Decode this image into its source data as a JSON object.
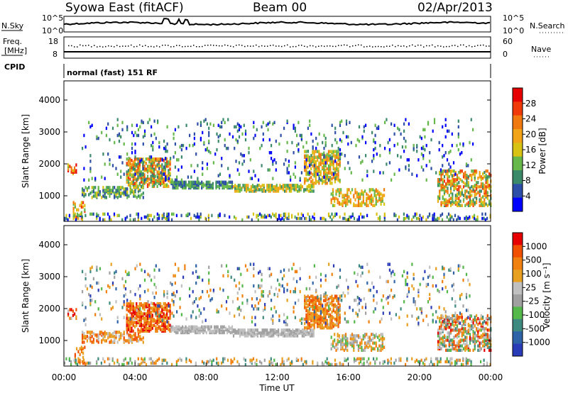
{
  "header": {
    "station": "Syowa East (fitACF)",
    "beam": "Beam 00",
    "date": "02/Apr/2013"
  },
  "status_panels": {
    "nsky_label": "N.Sky",
    "nsearch_label": "N.Search",
    "nsky_ticks": [
      "10^5",
      "10^0"
    ],
    "nsearch_ticks": [
      "10^5",
      "10^0"
    ],
    "freq_label_top": "Freq.",
    "freq_label_unit": "[MHz]",
    "freq_ticks": [
      "18",
      "8"
    ],
    "nave_label": "Nave",
    "nave_ticks": [
      "60",
      "0"
    ],
    "cpid_label": "CPID",
    "cpid_value": "normal (fast) 151 RF"
  },
  "colors": {
    "power_scale": [
      "#0000ff",
      "#2c4ea6",
      "#3a8a6a",
      "#66b84a",
      "#d8c214",
      "#f2a418",
      "#f07a10",
      "#f03a0a",
      "#e60000"
    ],
    "velocity_scale": [
      "#2a3cb8",
      "#2e63a8",
      "#3f8a80",
      "#55b84a",
      "#a0a0a0",
      "#c0c0c0",
      "#e8a020",
      "#f08010",
      "#f05000",
      "#e60000"
    ]
  },
  "chart_data": [
    {
      "type": "heatmap",
      "title": "",
      "xlabel": "Time UT",
      "ylabel": "Slant Range [km]",
      "x_ticks": [
        "00:00",
        "04:00",
        "08:00",
        "12:00",
        "16:00",
        "20:00",
        "00:00"
      ],
      "y_ticks": [
        "1000",
        "2000",
        "3000",
        "4000"
      ],
      "ylim": [
        200,
        4600
      ],
      "colorbar_label": "Power [dB]",
      "colorbar_ticks": [
        "28",
        "24",
        "20",
        "16",
        "12",
        "8",
        "4"
      ],
      "colorbar_range": [
        0,
        32
      ]
    },
    {
      "type": "heatmap",
      "title": "",
      "xlabel": "Time UT",
      "ylabel": "Slant Range [km]",
      "x_ticks": [
        "00:00",
        "04:00",
        "08:00",
        "12:00",
        "16:00",
        "20:00",
        "00:00"
      ],
      "y_ticks": [
        "1000",
        "2000",
        "3000",
        "4000"
      ],
      "ylim": [
        200,
        4600
      ],
      "colorbar_label": "Velocity [m s⁻¹]",
      "colorbar_ticks": [
        "1000",
        "500",
        "100",
        "25",
        "-25",
        "-100",
        "-500",
        "-1000"
      ],
      "colorbar_levels": [
        1000,
        500,
        100,
        25,
        -25,
        -100,
        -500,
        -1000
      ]
    }
  ]
}
